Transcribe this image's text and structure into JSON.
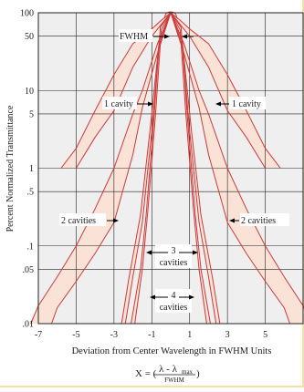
{
  "chart_data": {
    "type": "line",
    "xlabel": "Deviation from Center Wavelength in FWHM Units",
    "ylabel": "Percent Normalized Transmittance",
    "xlim": [
      -7,
      7
    ],
    "ylim": [
      0.01,
      100
    ],
    "yscale": "log",
    "x_ticks": [
      "-7",
      "-5",
      "-3",
      "-1",
      "1",
      "3",
      "5"
    ],
    "y_ticks": [
      "100",
      "50",
      "10",
      "5",
      "1",
      ".5",
      ".1",
      ".05",
      ".01"
    ],
    "y_tick_values": [
      100,
      50,
      10,
      5,
      1,
      0.5,
      0.1,
      0.05,
      0.01
    ],
    "grid": true,
    "colors": {
      "curve": "#cc3a3a",
      "band_fill": "#fbe2d6",
      "grid": "#222222",
      "frame_border": "#f2e2a6"
    },
    "series": [
      {
        "name": "1 cavity",
        "min": [
          [
            0,
            100
          ],
          [
            1,
            50
          ],
          [
            2,
            20
          ],
          [
            3,
            5.5
          ],
          [
            4,
            2.5
          ],
          [
            5,
            1
          ]
        ],
        "max": [
          [
            0,
            100
          ],
          [
            0.5,
            80
          ],
          [
            1,
            62
          ],
          [
            2,
            40
          ],
          [
            3,
            16
          ],
          [
            4,
            5.5
          ],
          [
            5,
            1.8
          ],
          [
            5.8,
            1
          ]
        ]
      },
      {
        "name": "2 cavities",
        "min": [
          [
            0,
            100
          ],
          [
            0.7,
            30
          ],
          [
            1.5,
            6
          ],
          [
            2,
            1.5
          ],
          [
            3,
            0.2
          ],
          [
            4,
            0.08
          ],
          [
            5,
            0.035
          ],
          [
            6,
            0.016
          ],
          [
            6.3,
            0.01
          ]
        ],
        "max": [
          [
            0,
            100
          ],
          [
            0.7,
            40
          ],
          [
            1.5,
            10
          ],
          [
            2,
            5
          ],
          [
            3,
            1
          ],
          [
            4,
            0.3
          ],
          [
            5,
            0.1
          ],
          [
            6,
            0.04
          ],
          [
            7,
            0.017
          ],
          [
            7.4,
            0.01
          ]
        ]
      },
      {
        "name": "3 cavities",
        "min": [
          [
            0,
            100
          ],
          [
            0.6,
            40
          ],
          [
            1,
            3
          ],
          [
            1.5,
            0.2
          ],
          [
            2,
            0.04
          ],
          [
            2.4,
            0.01
          ]
        ],
        "max": [
          [
            0,
            100
          ],
          [
            0.6,
            45
          ],
          [
            1.1,
            3
          ],
          [
            1.6,
            0.25
          ],
          [
            2.2,
            0.04
          ],
          [
            2.6,
            0.01
          ]
        ]
      },
      {
        "name": "4 cavities",
        "min": [
          [
            0,
            100
          ],
          [
            0.5,
            60
          ],
          [
            0.8,
            5
          ],
          [
            1.2,
            0.3
          ],
          [
            1.5,
            0.05
          ],
          [
            1.9,
            0.01
          ]
        ],
        "max": [
          [
            0,
            100
          ],
          [
            0.55,
            65
          ],
          [
            0.9,
            4
          ],
          [
            1.3,
            0.25
          ],
          [
            1.6,
            0.05
          ],
          [
            2.1,
            0.01
          ]
        ]
      }
    ],
    "annotations": [
      {
        "text": "FWHM"
      },
      {
        "text": "1 cavity"
      },
      {
        "text": "1 cavity"
      },
      {
        "text": "2 cavities"
      },
      {
        "text": "2 cavities"
      },
      {
        "text": "3"
      },
      {
        "text": "cavities"
      },
      {
        "text": "4"
      },
      {
        "text": "cavities"
      }
    ],
    "formula": {
      "lhs": "X = (",
      "numerator": "λ - λ",
      "sub": "max",
      "denominator": "FWHM",
      "rhs": ")"
    }
  }
}
